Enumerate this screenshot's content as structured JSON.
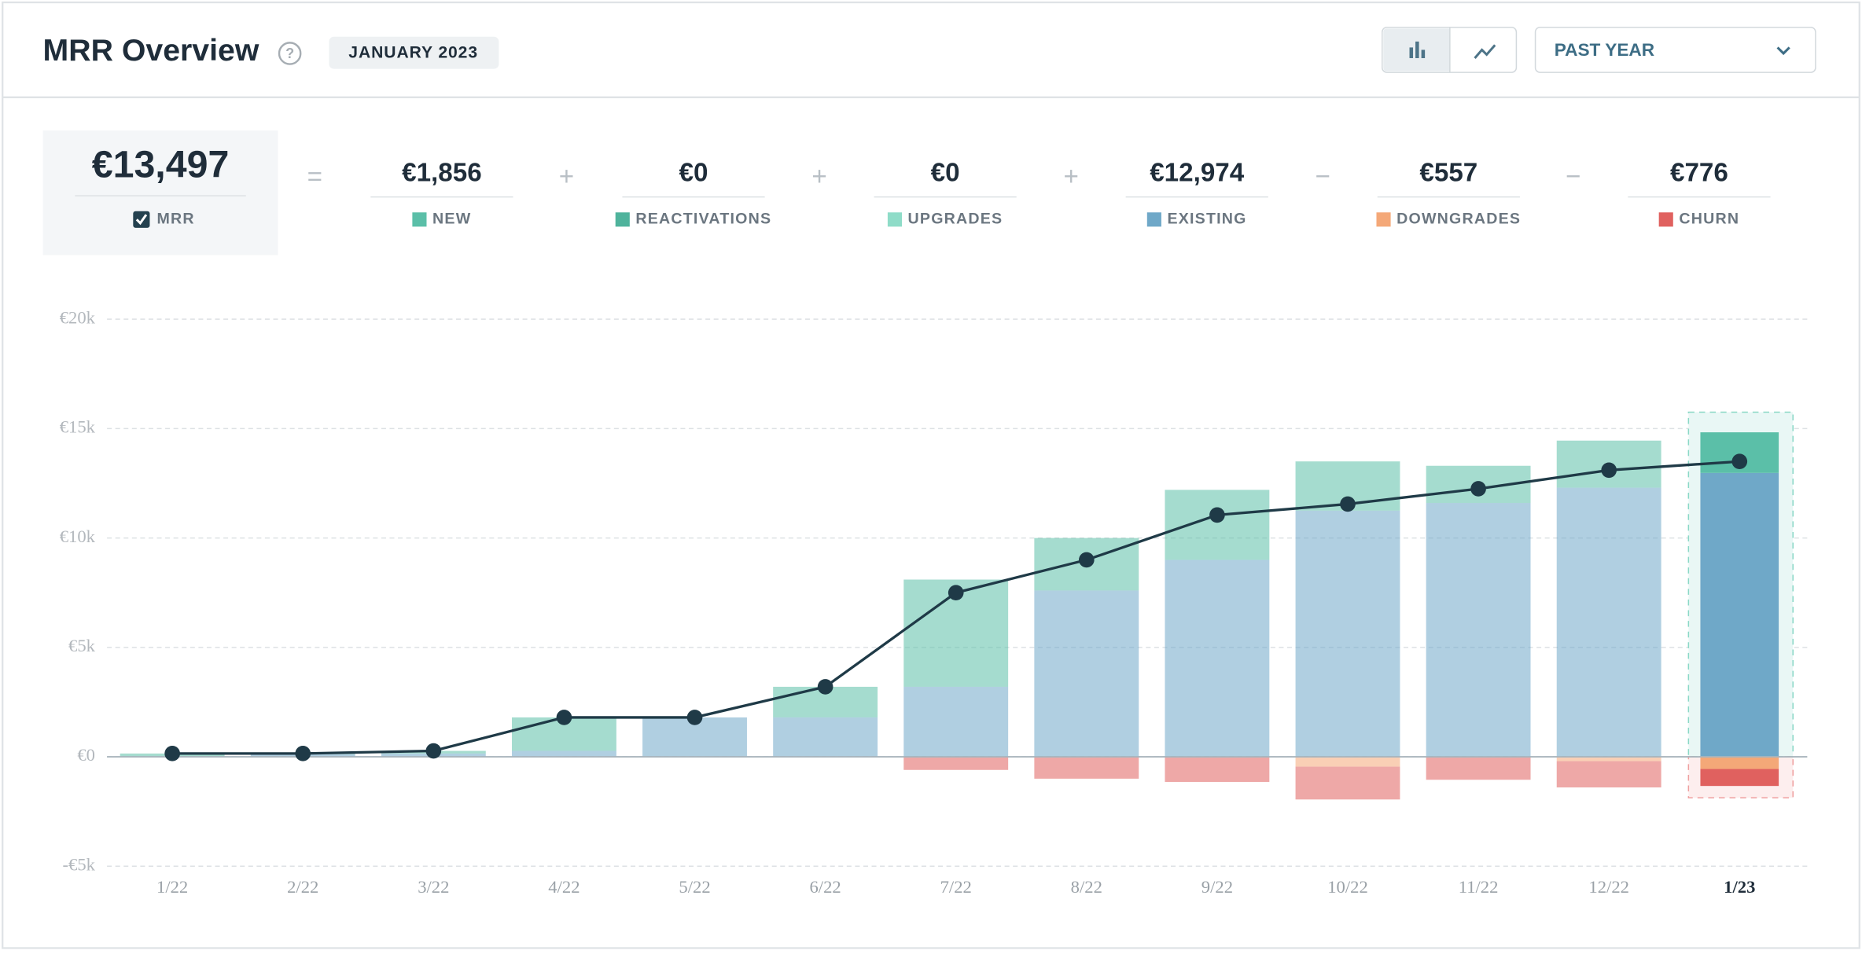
{
  "header": {
    "title": "MRR Overview",
    "period": "JANUARY 2023",
    "range": "PAST YEAR"
  },
  "summary": {
    "total": "€13,497",
    "items": [
      "€1,856",
      "€0",
      "€0",
      "€12,974",
      "€557",
      "€776"
    ],
    "operators": [
      "=",
      "+",
      "+",
      "+",
      "−",
      "−"
    ]
  },
  "chart_data": {
    "type": "bar",
    "categories": [
      "1/22",
      "2/22",
      "3/22",
      "4/22",
      "5/22",
      "6/22",
      "7/22",
      "8/22",
      "9/22",
      "10/22",
      "11/22",
      "12/22",
      "1/23"
    ],
    "series": [
      {
        "name": "NEW",
        "color": "#5bbfa8",
        "values": [
          150,
          30,
          120,
          1530,
          0,
          1400,
          4900,
          2400,
          3200,
          2250,
          1700,
          2150,
          1856
        ]
      },
      {
        "name": "REACTIVATIONS",
        "color": "#4fb39c",
        "values": [
          0,
          0,
          0,
          0,
          0,
          0,
          0,
          0,
          0,
          0,
          0,
          0,
          0
        ]
      },
      {
        "name": "UPGRADES",
        "color": "#8fdcc8",
        "values": [
          0,
          0,
          0,
          0,
          0,
          0,
          0,
          0,
          0,
          0,
          0,
          0,
          0
        ]
      },
      {
        "name": "EXISTING",
        "color": "#6fa8c8",
        "values": [
          0,
          120,
          150,
          270,
          1800,
          1800,
          3200,
          7600,
          9000,
          11250,
          11600,
          12300,
          12974
        ]
      },
      {
        "name": "DOWNGRADES",
        "color": "#f4a878",
        "values": [
          0,
          0,
          0,
          0,
          0,
          0,
          0,
          0,
          0,
          -450,
          0,
          -200,
          -557
        ]
      },
      {
        "name": "CHURN",
        "color": "#e0615f",
        "values": [
          0,
          0,
          0,
          0,
          0,
          0,
          -600,
          -1000,
          -1150,
          -1500,
          -1050,
          -1200,
          -776
        ]
      },
      {
        "name": "MRR",
        "type": "line",
        "color": "#1f3a47",
        "values": [
          150,
          150,
          270,
          1800,
          1800,
          3200,
          7500,
          9000,
          11050,
          11550,
          12250,
          13100,
          13497
        ]
      }
    ],
    "ylim": [
      -5000,
      20000
    ],
    "yticks": [
      {
        "value": -5000,
        "label": "-€5k"
      },
      {
        "value": 0,
        "label": "€0"
      },
      {
        "value": 5000,
        "label": "€5k"
      },
      {
        "value": 10000,
        "label": "€10k"
      },
      {
        "value": 15000,
        "label": "€15k"
      },
      {
        "value": 20000,
        "label": "€20k"
      }
    ],
    "grid": true
  }
}
